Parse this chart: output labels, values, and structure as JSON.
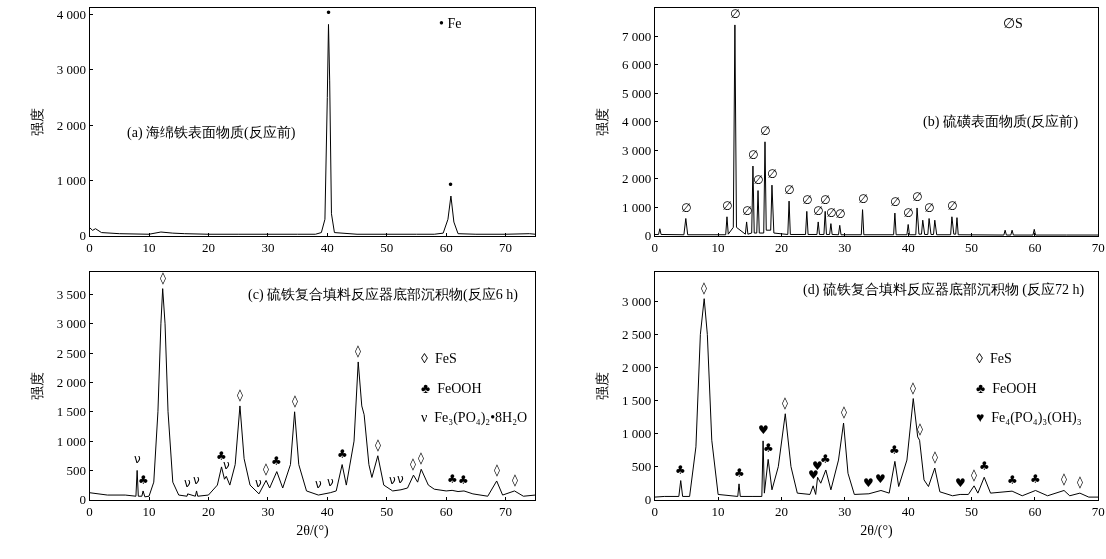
{
  "chart_data": [
    {
      "type": "line",
      "title": "(a) 海绵铁表面物质(反应前)",
      "ylabel": "强度",
      "color": "#000000",
      "x": [
        0,
        0.5,
        1,
        2,
        5,
        10,
        12,
        14,
        16,
        20,
        25,
        30,
        35,
        38,
        39,
        39.6,
        40.0,
        40.2,
        40.4,
        40.7,
        41.2,
        45,
        50,
        55,
        58,
        59.5,
        60.3,
        60.8,
        61.3,
        62,
        65,
        70,
        74,
        75
      ],
      "values": [
        150,
        100,
        130,
        60,
        40,
        30,
        70,
        50,
        40,
        30,
        30,
        30,
        30,
        30,
        60,
        300,
        2500,
        3820,
        2800,
        400,
        60,
        30,
        30,
        30,
        30,
        50,
        300,
        720,
        250,
        40,
        30,
        30,
        40,
        30
      ],
      "xlim": [
        0,
        75
      ],
      "ylim": [
        0,
        4120
      ],
      "xticks": [
        0,
        10,
        20,
        30,
        40,
        50,
        60,
        70
      ],
      "yticks": [
        0,
        {
          "value": 1000,
          "label": "1 000"
        },
        {
          "value": 2000,
          "label": "2 000"
        },
        {
          "value": 3000,
          "label": "3 000"
        },
        {
          "value": 4000,
          "label": "4 000"
        }
      ],
      "annotations": [
        {
          "text": "•",
          "x": 40.2,
          "y": 3820
        },
        {
          "text": "•",
          "x": 60.8,
          "y": 720
        },
        "• Fe"
      ]
    },
    {
      "type": "line",
      "title": "(b) 硫磺表面物质(反应前)",
      "ylabel": "强度",
      "color": "#000000",
      "x": [
        0,
        0.6,
        0.8,
        1.0,
        4.6,
        4.9,
        5.2,
        11.2,
        11.4,
        11.6,
        12.4,
        12.65,
        12.9,
        14.3,
        14.5,
        14.7,
        15.3,
        15.5,
        15.7,
        16.1,
        16.3,
        16.5,
        17.2,
        17.4,
        17.6,
        18.3,
        18.5,
        18.8,
        21.0,
        21.2,
        21.4,
        23.8,
        24.0,
        24.2,
        25.6,
        25.8,
        26.0,
        26.7,
        26.9,
        27.1,
        27.6,
        27.8,
        28.0,
        29.0,
        29.2,
        29.4,
        32.6,
        32.8,
        33.0,
        37.7,
        37.9,
        38.1,
        39.8,
        40.0,
        40.2,
        41.2,
        41.4,
        41.7,
        42.1,
        42.3,
        42.6,
        43.1,
        43.3,
        43.6,
        44.0,
        44.2,
        44.5,
        46.7,
        46.9,
        47.2,
        47.5,
        47.7,
        47.9,
        55.1,
        55.3,
        55.5,
        56.2,
        56.4,
        56.6,
        59.7,
        59.9,
        60.1,
        65,
        70
      ],
      "values": [
        50,
        50,
        250,
        50,
        40,
        610,
        40,
        40,
        670,
        60,
        300,
        7400,
        300,
        60,
        490,
        60,
        100,
        2450,
        100,
        100,
        1590,
        100,
        100,
        3300,
        200,
        200,
        1780,
        100,
        50,
        1220,
        50,
        50,
        860,
        50,
        50,
        490,
        50,
        50,
        860,
        50,
        50,
        430,
        50,
        40,
        370,
        40,
        40,
        920,
        40,
        40,
        800,
        40,
        40,
        400,
        40,
        40,
        980,
        60,
        60,
        550,
        50,
        50,
        610,
        50,
        50,
        550,
        40,
        40,
        670,
        60,
        60,
        640,
        40,
        30,
        200,
        30,
        30,
        200,
        30,
        30,
        230,
        30,
        30,
        30
      ],
      "xlim": [
        0,
        70
      ],
      "ylim": [
        0,
        8000
      ],
      "xticks": [
        0,
        10,
        20,
        30,
        40,
        50,
        60,
        70
      ],
      "yticks": [
        0,
        {
          "value": 1000,
          "label": "1 000"
        },
        {
          "value": 2000,
          "label": "2 000"
        },
        {
          "value": 3000,
          "label": "3 000"
        },
        {
          "value": 4000,
          "label": "4 000"
        },
        {
          "value": 5000,
          "label": "5 000"
        },
        {
          "value": 6000,
          "label": "6 000"
        },
        {
          "value": 7000,
          "label": "7 000"
        }
      ],
      "annotations": [
        {
          "text": "∅",
          "x": 4.9,
          "y": 610
        },
        {
          "text": "∅",
          "x": 11.4,
          "y": 670
        },
        {
          "text": "∅",
          "x": 12.65,
          "y": 7400
        },
        {
          "text": "∅",
          "x": 14.5,
          "y": 490
        },
        {
          "text": "∅",
          "x": 15.5,
          "y": 2450
        },
        {
          "text": "∅",
          "x": 16.3,
          "y": 1590
        },
        {
          "text": "∅",
          "x": 17.4,
          "y": 3300
        },
        {
          "text": "∅",
          "x": 18.5,
          "y": 1780
        },
        {
          "text": "∅",
          "x": 21.2,
          "y": 1220
        },
        {
          "text": "∅",
          "x": 24.0,
          "y": 860
        },
        {
          "text": "∅",
          "x": 25.8,
          "y": 490
        },
        {
          "text": "∅",
          "x": 26.9,
          "y": 860
        },
        {
          "text": "∅",
          "x": 27.8,
          "y": 430
        },
        {
          "text": "∅",
          "x": 29.2,
          "y": 370
        },
        {
          "text": "∅",
          "x": 32.8,
          "y": 920
        },
        {
          "text": "∅",
          "x": 37.9,
          "y": 800
        },
        {
          "text": "∅",
          "x": 40.0,
          "y": 400
        },
        {
          "text": "∅",
          "x": 41.4,
          "y": 980
        },
        {
          "text": "∅",
          "x": 43.3,
          "y": 610
        },
        {
          "text": "∅",
          "x": 46.9,
          "y": 670
        },
        "∅S"
      ]
    },
    {
      "type": "line",
      "title": "(c) 硫铁复合填料反应器底部沉积物(反应6 h)",
      "xlabel": "2θ/(°)",
      "ylabel": "强度",
      "color": "#000000",
      "x": [
        0,
        3,
        6,
        7.8,
        8.0,
        8.2,
        8.8,
        9.0,
        9.3,
        10,
        10.8,
        11.5,
        12.0,
        12.3,
        12.7,
        13.2,
        14,
        15,
        16.4,
        16.5,
        17.8,
        18.0,
        18.2,
        20,
        21.5,
        22.2,
        22.7,
        23.0,
        23.6,
        24.5,
        25.3,
        26.0,
        27,
        28.5,
        29.7,
        30.3,
        31.5,
        32.5,
        33.8,
        34.5,
        35.2,
        36.5,
        38.5,
        40.5,
        41.5,
        42.5,
        43.2,
        44.5,
        45.2,
        45.8,
        46.2,
        47.0,
        47.5,
        48.5,
        49.5,
        51,
        52.4,
        53.5,
        54.5,
        55.2,
        55.8,
        57,
        58,
        60,
        61,
        62,
        63,
        64.5,
        67,
        68.5,
        69.5,
        71.5,
        73,
        75
      ],
      "values": [
        120,
        80,
        80,
        60,
        500,
        60,
        60,
        150,
        50,
        60,
        300,
        1500,
        3000,
        3600,
        3000,
        1500,
        300,
        80,
        60,
        100,
        60,
        150,
        60,
        80,
        250,
        560,
        350,
        400,
        250,
        600,
        1600,
        700,
        250,
        100,
        330,
        200,
        480,
        200,
        600,
        1500,
        600,
        150,
        80,
        120,
        150,
        600,
        250,
        1000,
        2350,
        1600,
        1450,
        600,
        380,
        750,
        250,
        150,
        170,
        200,
        420,
        300,
        520,
        250,
        180,
        150,
        160,
        140,
        150,
        100,
        60,
        320,
        80,
        150,
        60,
        80
      ],
      "xlim": [
        0,
        75
      ],
      "ylim": [
        0,
        3880
      ],
      "xticks": [
        0,
        10,
        20,
        30,
        40,
        50,
        60,
        70
      ],
      "yticks": [
        0,
        500,
        {
          "value": 1000,
          "label": "1 000"
        },
        {
          "value": 1500,
          "label": "1 500"
        },
        {
          "value": 2000,
          "label": "2 000"
        },
        {
          "value": 2500,
          "label": "2 500"
        },
        {
          "value": 3000,
          "label": "3 000"
        },
        {
          "value": 3500,
          "label": "3 500"
        }
      ],
      "annotations": [
        {
          "text": "◊",
          "x": 12.3,
          "y": 3600
        },
        {
          "text": "◊",
          "x": 25.3,
          "y": 1600
        },
        {
          "text": "◊",
          "x": 29.7,
          "y": 330
        },
        {
          "text": "◊",
          "x": 34.5,
          "y": 1500
        },
        {
          "text": "◊",
          "x": 45.2,
          "y": 2350
        },
        {
          "text": "◊",
          "x": 48.5,
          "y": 750
        },
        {
          "text": "◊",
          "x": 54.5,
          "y": 420
        },
        {
          "text": "◊",
          "x": 55.8,
          "y": 520
        },
        {
          "text": "◊",
          "x": 68.5,
          "y": 320
        },
        {
          "text": "◊",
          "x": 71.5,
          "y": 150
        },
        {
          "text": "♣",
          "x": 9.0,
          "y": 150
        },
        {
          "text": "♣",
          "x": 22.2,
          "y": 560
        },
        {
          "text": "♣",
          "x": 31.5,
          "y": 480
        },
        {
          "text": "♣",
          "x": 42.5,
          "y": 600
        },
        {
          "text": "♣",
          "x": 61,
          "y": 160
        },
        {
          "text": "♣",
          "x": 63,
          "y": 150
        },
        {
          "text": "ν",
          "x": 8.0,
          "y": 500
        },
        {
          "text": "ν",
          "x": 16.5,
          "y": 100
        },
        {
          "text": "ν",
          "x": 18.0,
          "y": 150
        },
        {
          "text": "ν",
          "x": 23.0,
          "y": 400
        },
        {
          "text": "ν",
          "x": 28.5,
          "y": 100
        },
        {
          "text": "ν",
          "x": 38.5,
          "y": 80
        },
        {
          "text": "ν",
          "x": 40.5,
          "y": 120
        },
        {
          "text": "ν",
          "x": 51,
          "y": 150
        },
        {
          "text": "ν",
          "x": 52.4,
          "y": 170
        },
        "◊  FeS",
        "♣  FeOOH",
        "ν  Fe₃(PO₄)₂•8H₂O"
      ]
    },
    {
      "type": "line",
      "title": "(d) 硫铁复合填料反应器底部沉积物 (反应72 h)",
      "xlabel": "2θ/(°)",
      "ylabel": "强度",
      "color": "#000000",
      "x": [
        0,
        1.5,
        3.8,
        4.1,
        4.4,
        5.5,
        6.5,
        7.2,
        7.8,
        8.3,
        9.0,
        10,
        13.1,
        13.3,
        13.5,
        15.5,
        16.9,
        17.1,
        17.3,
        17.9,
        18.5,
        19.5,
        20.6,
        21.5,
        22.5,
        24.5,
        25.0,
        25.4,
        25.7,
        26.2,
        27.0,
        27.8,
        29,
        29.8,
        30.5,
        31.5,
        33.8,
        35.7,
        37,
        37.9,
        38.5,
        39.8,
        40.8,
        41.5,
        41.8,
        42.5,
        43.2,
        44.2,
        45,
        47,
        48.2,
        49.5,
        50.4,
        51.0,
        52.0,
        53,
        56.4,
        58,
        60.1,
        62,
        64.6,
        65.5,
        67.1,
        68.5,
        70
      ],
      "values": [
        40,
        50,
        50,
        290,
        50,
        50,
        800,
        2500,
        3040,
        2500,
        900,
        80,
        50,
        240,
        50,
        50,
        50,
        890,
        100,
        610,
        150,
        500,
        1300,
        500,
        100,
        80,
        210,
        80,
        340,
        250,
        450,
        150,
        600,
        1160,
        400,
        80,
        90,
        140,
        100,
        580,
        200,
        600,
        1530,
        950,
        900,
        300,
        200,
        480,
        120,
        60,
        80,
        80,
        210,
        100,
        340,
        100,
        130,
        60,
        140,
        60,
        140,
        60,
        100,
        40,
        40
      ],
      "xlim": [
        0,
        70
      ],
      "ylim": [
        0,
        3440
      ],
      "xticks": [
        0,
        10,
        20,
        30,
        40,
        50,
        60,
        70
      ],
      "yticks": [
        0,
        500,
        {
          "value": 1000,
          "label": "1 000"
        },
        {
          "value": 1500,
          "label": "1 500"
        },
        {
          "value": 2000,
          "label": "2 000"
        },
        {
          "value": 2500,
          "label": "2 500"
        },
        {
          "value": 3000,
          "label": "3 000"
        }
      ],
      "annotations": [
        {
          "text": "◊",
          "x": 7.8,
          "y": 3040
        },
        {
          "text": "◊",
          "x": 20.6,
          "y": 1300
        },
        {
          "text": "◊",
          "x": 29.8,
          "y": 1160
        },
        {
          "text": "◊",
          "x": 40.8,
          "y": 1530
        },
        {
          "text": "◊",
          "x": 41.8,
          "y": 900
        },
        {
          "text": "◊",
          "x": 44.2,
          "y": 480
        },
        {
          "text": "◊",
          "x": 50.4,
          "y": 210
        },
        {
          "text": "◊",
          "x": 64.6,
          "y": 140
        },
        {
          "text": "◊",
          "x": 67.1,
          "y": 100
        },
        {
          "text": "♣",
          "x": 4.1,
          "y": 290
        },
        {
          "text": "♣",
          "x": 13.3,
          "y": 240
        },
        {
          "text": "♣",
          "x": 17.9,
          "y": 610
        },
        {
          "text": "♣",
          "x": 27.0,
          "y": 450
        },
        {
          "text": "♣",
          "x": 37.9,
          "y": 580
        },
        {
          "text": "♣",
          "x": 52.0,
          "y": 340
        },
        {
          "text": "♣",
          "x": 56.4,
          "y": 130
        },
        {
          "text": "♣",
          "x": 60.1,
          "y": 140
        },
        {
          "text": "♥",
          "x": 17.1,
          "y": 890
        },
        {
          "text": "♥",
          "x": 25.0,
          "y": 210
        },
        {
          "text": "♥",
          "x": 25.7,
          "y": 340
        },
        {
          "text": "♥",
          "x": 33.8,
          "y": 90
        },
        {
          "text": "♥",
          "x": 35.7,
          "y": 140
        },
        {
          "text": "♥",
          "x": 48.2,
          "y": 80
        },
        "◊  FeS",
        "♣  FeOOH",
        "♥  Fe₄(PO₄)₃(OH)₃"
      ]
    }
  ]
}
